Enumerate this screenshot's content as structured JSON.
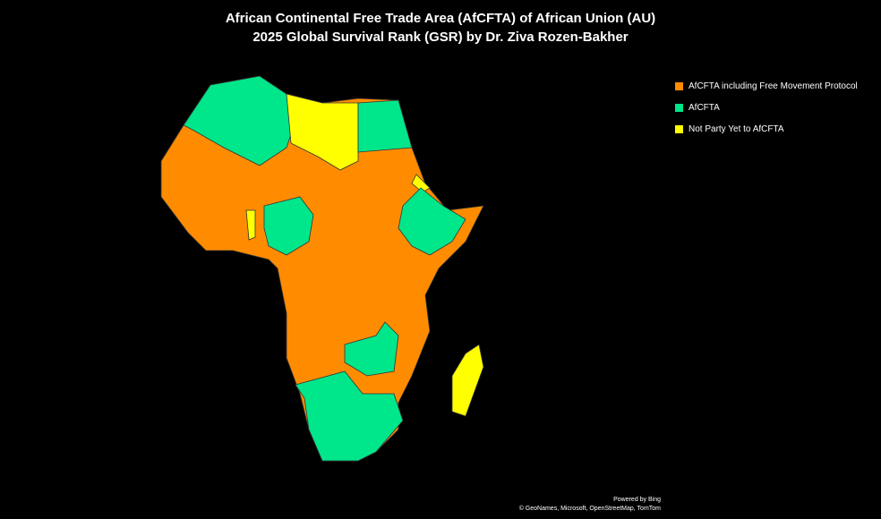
{
  "title": [
    "African Continental Free Trade Area (AfCFTA) of African Union (AU)",
    "2025 Global Survival Rank (GSR) by Dr. Ziva Rozen-Bakher"
  ],
  "legend": [
    {
      "name": "AfCFTA including Free Movement Protocol",
      "color": "#ff8c00"
    },
    {
      "name": "AfCFTA",
      "color": "#00e68a"
    },
    {
      "name": "Not Party Yet to AfCFTA",
      "color": "#ffff00"
    }
  ],
  "attribution": [
    "Powered by Bing",
    "© GeoNames, Microsoft, OpenStreetMap, TomTom"
  ]
}
